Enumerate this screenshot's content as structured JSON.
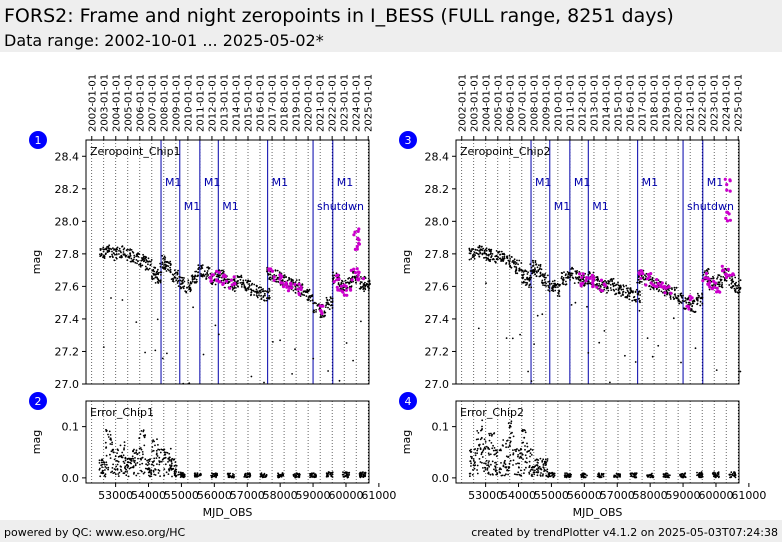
{
  "header": {
    "title": "FORS2: Frame and night zeropoints in I_BESS (FULL range, 8251 days)",
    "subtitle": "Data range: 2002-10-01 ... 2025-05-02*"
  },
  "footer": {
    "left": "powered by QC: www.eso.org/HC",
    "right": "created by trendPlotter v4.1.2 on 2025-05-03T07:24:38"
  },
  "colors": {
    "points": "#000000",
    "highlight": "#cc00cc",
    "events": "#0000aa",
    "badge": "#0000ff",
    "header_bg": "#eeeeee"
  },
  "chart_data": [
    {
      "type": "scatter",
      "badge": "1",
      "label": "Zeropoint_Chip1",
      "ylabel": "mag",
      "xlabel": "",
      "xlim": [
        52100,
        60700
      ],
      "ylim": [
        27.0,
        28.5
      ],
      "yticks": [
        "27.0",
        "27.2",
        "27.4",
        "27.6",
        "27.8",
        "28.0",
        "28.2",
        "28.4"
      ],
      "yvals": [
        27.0,
        27.2,
        27.4,
        27.6,
        27.8,
        28.0,
        28.2,
        28.4
      ],
      "events": [
        {
          "mjd": 54380,
          "label": "M1"
        },
        {
          "mjd": 54950,
          "label": "M1"
        },
        {
          "mjd": 55560,
          "label": "M1"
        },
        {
          "mjd": 56120,
          "label": "M1"
        },
        {
          "mjd": 57620,
          "label": "M1"
        },
        {
          "mjd": 59000,
          "label": "shutdwn"
        },
        {
          "mjd": 59600,
          "label": "M1"
        }
      ],
      "series": [
        {
          "role": "frame",
          "values": [
            [
              52600,
              27.8
            ],
            [
              52800,
              27.82
            ],
            [
              53000,
              27.8
            ],
            [
              53200,
              27.81
            ],
            [
              53400,
              27.79
            ],
            [
              53600,
              27.78
            ],
            [
              53800,
              27.76
            ],
            [
              54000,
              27.74
            ],
            [
              54200,
              27.68
            ],
            [
              54300,
              27.65
            ],
            [
              54450,
              27.75
            ],
            [
              54600,
              27.72
            ],
            [
              54800,
              27.66
            ],
            [
              55000,
              27.62
            ],
            [
              55200,
              27.6
            ],
            [
              55400,
              27.66
            ],
            [
              55600,
              27.7
            ],
            [
              55800,
              27.68
            ],
            [
              56000,
              27.65
            ],
            [
              56200,
              27.66
            ],
            [
              56400,
              27.63
            ],
            [
              56600,
              27.61
            ],
            [
              56800,
              27.63
            ],
            [
              57000,
              27.6
            ],
            [
              57200,
              27.58
            ],
            [
              57400,
              27.56
            ],
            [
              57600,
              27.55
            ],
            [
              57700,
              27.68
            ],
            [
              57900,
              27.66
            ],
            [
              58100,
              27.64
            ],
            [
              58300,
              27.62
            ],
            [
              58500,
              27.6
            ],
            [
              58700,
              27.58
            ],
            [
              58900,
              27.55
            ],
            [
              59100,
              27.47
            ],
            [
              59300,
              27.45
            ],
            [
              59500,
              27.5
            ],
            [
              59700,
              27.65
            ],
            [
              59900,
              27.6
            ],
            [
              60100,
              27.62
            ],
            [
              60300,
              27.66
            ],
            [
              60500,
              27.62
            ],
            [
              60650,
              27.6
            ]
          ]
        },
        {
          "role": "night",
          "values": [
            [
              55950,
              27.65
            ],
            [
              56150,
              27.66
            ],
            [
              56350,
              27.64
            ],
            [
              56550,
              27.62
            ],
            [
              57750,
              27.67
            ],
            [
              57950,
              27.65
            ],
            [
              58150,
              27.63
            ],
            [
              58350,
              27.61
            ],
            [
              58550,
              27.59
            ],
            [
              59200,
              27.46
            ],
            [
              59700,
              27.63
            ],
            [
              59850,
              27.6
            ],
            [
              60050,
              27.58
            ],
            [
              60250,
              27.68
            ],
            [
              60450,
              27.66
            ],
            [
              60300,
              27.92
            ],
            [
              60320,
              27.86
            ]
          ]
        }
      ]
    },
    {
      "type": "scatter",
      "badge": "2",
      "label": "Error_Chip1",
      "ylabel": "mag",
      "xlabel": "MJD_OBS",
      "xlim": [
        52100,
        60700
      ],
      "ylim": [
        -0.01,
        0.15
      ],
      "yticks": [
        "0.0",
        "0.1"
      ],
      "yvals": [
        0.0,
        0.1
      ],
      "xticks": [
        "53000",
        "54000",
        "55000",
        "56000",
        "57000",
        "58000",
        "59000",
        "60000",
        "61000"
      ],
      "series": [
        {
          "role": "error",
          "values": [
            [
              52600,
              0.02
            ],
            [
              52800,
              0.05
            ],
            [
              53000,
              0.03
            ],
            [
              53200,
              0.04
            ],
            [
              53400,
              0.02
            ],
            [
              53600,
              0.03
            ],
            [
              53800,
              0.05
            ],
            [
              54000,
              0.02
            ],
            [
              54200,
              0.04
            ],
            [
              54400,
              0.03
            ],
            [
              54600,
              0.03
            ],
            [
              54800,
              0.02
            ],
            [
              55000,
              0.006
            ],
            [
              55500,
              0.005
            ],
            [
              56000,
              0.005
            ],
            [
              56500,
              0.005
            ],
            [
              57000,
              0.005
            ],
            [
              57500,
              0.005
            ],
            [
              58000,
              0.005
            ],
            [
              58500,
              0.005
            ],
            [
              59000,
              0.005
            ],
            [
              59500,
              0.006
            ],
            [
              60000,
              0.006
            ],
            [
              60500,
              0.006
            ]
          ]
        }
      ]
    },
    {
      "type": "scatter",
      "badge": "3",
      "label": "Zeropoint_Chip2",
      "ylabel": "mag",
      "xlabel": "",
      "xlim": [
        52100,
        60700
      ],
      "ylim": [
        27.0,
        28.5
      ],
      "yticks": [
        "27.0",
        "27.2",
        "27.4",
        "27.6",
        "27.8",
        "28.0",
        "28.2",
        "28.4"
      ],
      "yvals": [
        27.0,
        27.2,
        27.4,
        27.6,
        27.8,
        28.0,
        28.2,
        28.4
      ],
      "events": [
        {
          "mjd": 54380,
          "label": "M1"
        },
        {
          "mjd": 54950,
          "label": "M1"
        },
        {
          "mjd": 55560,
          "label": "M1"
        },
        {
          "mjd": 56120,
          "label": "M1"
        },
        {
          "mjd": 57620,
          "label": "M1"
        },
        {
          "mjd": 59000,
          "label": "shutdwn"
        },
        {
          "mjd": 59600,
          "label": "M1"
        }
      ],
      "series": [
        {
          "role": "frame",
          "values": [
            [
              52600,
              27.8
            ],
            [
              52800,
              27.82
            ],
            [
              53000,
              27.8
            ],
            [
              53200,
              27.79
            ],
            [
              53400,
              27.78
            ],
            [
              53600,
              27.77
            ],
            [
              53800,
              27.75
            ],
            [
              54000,
              27.72
            ],
            [
              54200,
              27.66
            ],
            [
              54300,
              27.63
            ],
            [
              54450,
              27.72
            ],
            [
              54600,
              27.7
            ],
            [
              54800,
              27.64
            ],
            [
              55000,
              27.6
            ],
            [
              55200,
              27.58
            ],
            [
              55400,
              27.65
            ],
            [
              55600,
              27.68
            ],
            [
              55800,
              27.66
            ],
            [
              56000,
              27.64
            ],
            [
              56200,
              27.65
            ],
            [
              56400,
              27.62
            ],
            [
              56600,
              27.6
            ],
            [
              56800,
              27.61
            ],
            [
              57000,
              27.59
            ],
            [
              57200,
              27.57
            ],
            [
              57400,
              27.55
            ],
            [
              57600,
              27.54
            ],
            [
              57700,
              27.66
            ],
            [
              57900,
              27.64
            ],
            [
              58100,
              27.62
            ],
            [
              58300,
              27.6
            ],
            [
              58500,
              27.58
            ],
            [
              58700,
              27.56
            ],
            [
              58900,
              27.53
            ],
            [
              59100,
              27.5
            ],
            [
              59300,
              27.48
            ],
            [
              59500,
              27.52
            ],
            [
              59700,
              27.67
            ],
            [
              59900,
              27.62
            ],
            [
              60100,
              27.63
            ],
            [
              60300,
              27.67
            ],
            [
              60500,
              27.63
            ],
            [
              60650,
              27.6
            ]
          ]
        },
        {
          "role": "night",
          "values": [
            [
              55950,
              27.64
            ],
            [
              56150,
              27.65
            ],
            [
              56350,
              27.63
            ],
            [
              56550,
              27.61
            ],
            [
              57750,
              27.66
            ],
            [
              57950,
              27.64
            ],
            [
              58150,
              27.62
            ],
            [
              58350,
              27.6
            ],
            [
              58550,
              27.58
            ],
            [
              59200,
              27.5
            ],
            [
              59700,
              27.65
            ],
            [
              59850,
              27.62
            ],
            [
              60050,
              27.6
            ],
            [
              60250,
              27.69
            ],
            [
              60450,
              27.67
            ],
            [
              60350,
              28.22
            ],
            [
              60360,
              28.02
            ]
          ]
        }
      ]
    },
    {
      "type": "scatter",
      "badge": "4",
      "label": "Error_Chip2",
      "ylabel": "mag",
      "xlabel": "MJD_OBS",
      "xlim": [
        52100,
        60700
      ],
      "ylim": [
        -0.01,
        0.15
      ],
      "yticks": [
        "0.0",
        "0.1"
      ],
      "yvals": [
        0.0,
        0.1
      ],
      "xticks": [
        "53000",
        "54000",
        "55000",
        "56000",
        "57000",
        "58000",
        "59000",
        "60000",
        "61000"
      ],
      "series": [
        {
          "role": "error",
          "values": [
            [
              52600,
              0.03
            ],
            [
              52800,
              0.06
            ],
            [
              53000,
              0.04
            ],
            [
              53200,
              0.05
            ],
            [
              53400,
              0.03
            ],
            [
              53600,
              0.04
            ],
            [
              53800,
              0.06
            ],
            [
              54000,
              0.03
            ],
            [
              54200,
              0.05
            ],
            [
              54400,
              0.03
            ],
            [
              54600,
              0.02
            ],
            [
              54800,
              0.02
            ],
            [
              55000,
              0.006
            ],
            [
              55500,
              0.005
            ],
            [
              56000,
              0.005
            ],
            [
              56500,
              0.005
            ],
            [
              57000,
              0.005
            ],
            [
              57500,
              0.005
            ],
            [
              58000,
              0.005
            ],
            [
              58500,
              0.005
            ],
            [
              59000,
              0.005
            ],
            [
              59500,
              0.006
            ],
            [
              60000,
              0.006
            ],
            [
              60500,
              0.006
            ]
          ]
        }
      ]
    }
  ],
  "top_dates": [
    "2002-01-01",
    "2003-01-01",
    "2004-01-01",
    "2005-01-01",
    "2006-01-01",
    "2007-01-01",
    "2008-01-01",
    "2009-01-01",
    "2010-01-01",
    "2011-01-01",
    "2012-01-01",
    "2013-01-01",
    "2014-01-01",
    "2015-01-01",
    "2016-01-01",
    "2017-01-01",
    "2018-01-01",
    "2019-01-01",
    "2020-01-01",
    "2021-01-01",
    "2022-01-01",
    "2023-01-01",
    "2024-01-01",
    "2025-01-01"
  ],
  "top_dates_mjd": [
    52275,
    52640,
    53005,
    53371,
    53736,
    54101,
    54466,
    54832,
    55197,
    55562,
    55927,
    56293,
    56658,
    57023,
    57388,
    57754,
    58119,
    58484,
    58849,
    59215,
    59580,
    59945,
    60310,
    60676
  ]
}
